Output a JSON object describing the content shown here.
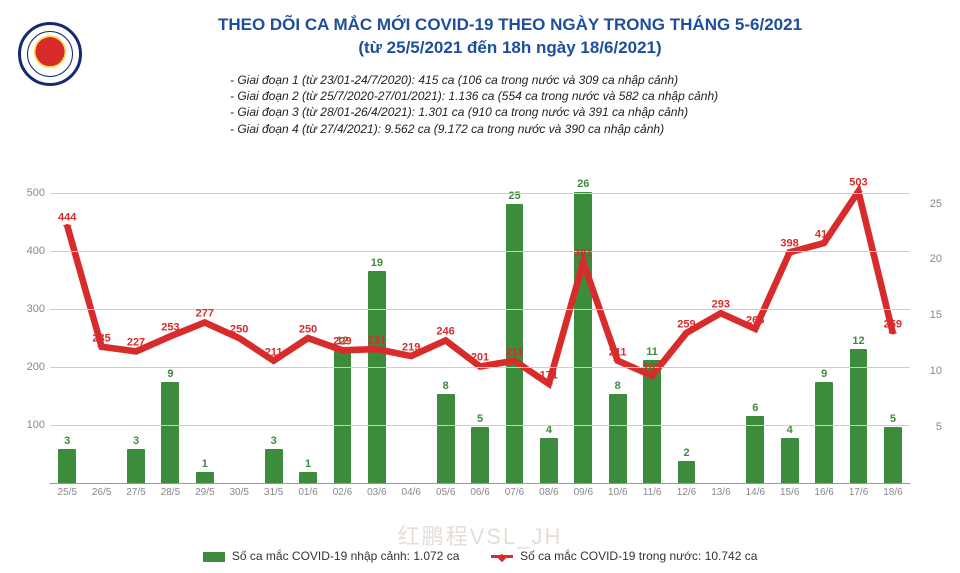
{
  "title": {
    "line1": "THEO DÕI CA MẮC MỚI COVID-19 THEO NGÀY TRONG THÁNG 5-6/2021",
    "line2": "(từ 25/5/2021 đến 18h ngày 18/6/2021)",
    "color": "#1f4e9c",
    "fontsize_pt": 17
  },
  "phases": [
    "- Giai đoạn 1 (từ 23/01-24/7/2020): 415 ca (106 ca trong nước và 309 ca nhập cảnh)",
    "- Giai đoạn 2 (từ 25/7/2020-27/01/2021): 1.136 ca (554 ca trong nước và 582 ca nhập cảnh)",
    "- Giai đoạn 3 (từ 28/01-26/4/2021): 1.301 ca (910 ca trong nước và 391 ca nhập cảnh)",
    "- Giai đoạn 4 (từ 27/4/2021): 9.562 ca (9.172 ca trong nước và 390 ca nhập cảnh)"
  ],
  "phase_fontsize_pt": 12,
  "chart": {
    "type": "bar+line",
    "background_color": "#ffffff",
    "grid_color": "#cccccc",
    "categories": [
      "25/5",
      "26/5",
      "27/5",
      "28/5",
      "29/5",
      "30/5",
      "31/5",
      "01/6",
      "02/6",
      "03/6",
      "04/6",
      "05/6",
      "06/6",
      "07/6",
      "08/6",
      "09/6",
      "10/6",
      "11/6",
      "12/6",
      "13/6",
      "14/6",
      "15/6",
      "16/6",
      "17/6",
      "18/6"
    ],
    "bars": {
      "series_name": "Số ca mắc COVID-19 nhập cảnh",
      "color": "#3d8b3d",
      "label_color": "#3d8b3d",
      "axis": "right",
      "ylim": [
        0,
        28
      ],
      "ytick_step": 5,
      "bar_width_ratio": 0.52,
      "values": [
        3,
        0,
        3,
        9,
        1,
        0,
        3,
        1,
        12,
        19,
        0,
        8,
        5,
        25,
        4,
        26,
        8,
        11,
        2,
        0,
        6,
        4,
        9,
        12,
        5
      ]
    },
    "line": {
      "series_name": "Số ca mắc COVID-19 trong nước",
      "color": "#d82c2c",
      "label_color": "#d82c2c",
      "axis": "left",
      "ylim": [
        0,
        540
      ],
      "yticks": [
        100,
        200,
        300,
        400,
        500
      ],
      "line_width": 2.2,
      "marker": "diamond",
      "marker_size": 6,
      "values": [
        444,
        235,
        227,
        253,
        277,
        250,
        211,
        250,
        229,
        231,
        219,
        246,
        201,
        211,
        171,
        381,
        211,
        185,
        259,
        293,
        266,
        398,
        414,
        503,
        259
      ]
    },
    "axis_label_color": "#888888",
    "axis_label_fontsize_pt": 10
  },
  "legend": {
    "items": [
      {
        "kind": "bar",
        "label": "Số ca mắc COVID-19 nhập cảnh: 1.072 ca",
        "color": "#3d8b3d"
      },
      {
        "kind": "line",
        "label": "Số ca mắc COVID-19 trong nước: 10.742 ca",
        "color": "#d82c2c"
      }
    ],
    "fontsize_pt": 12
  },
  "watermark": "红鹏程VSL_JH"
}
